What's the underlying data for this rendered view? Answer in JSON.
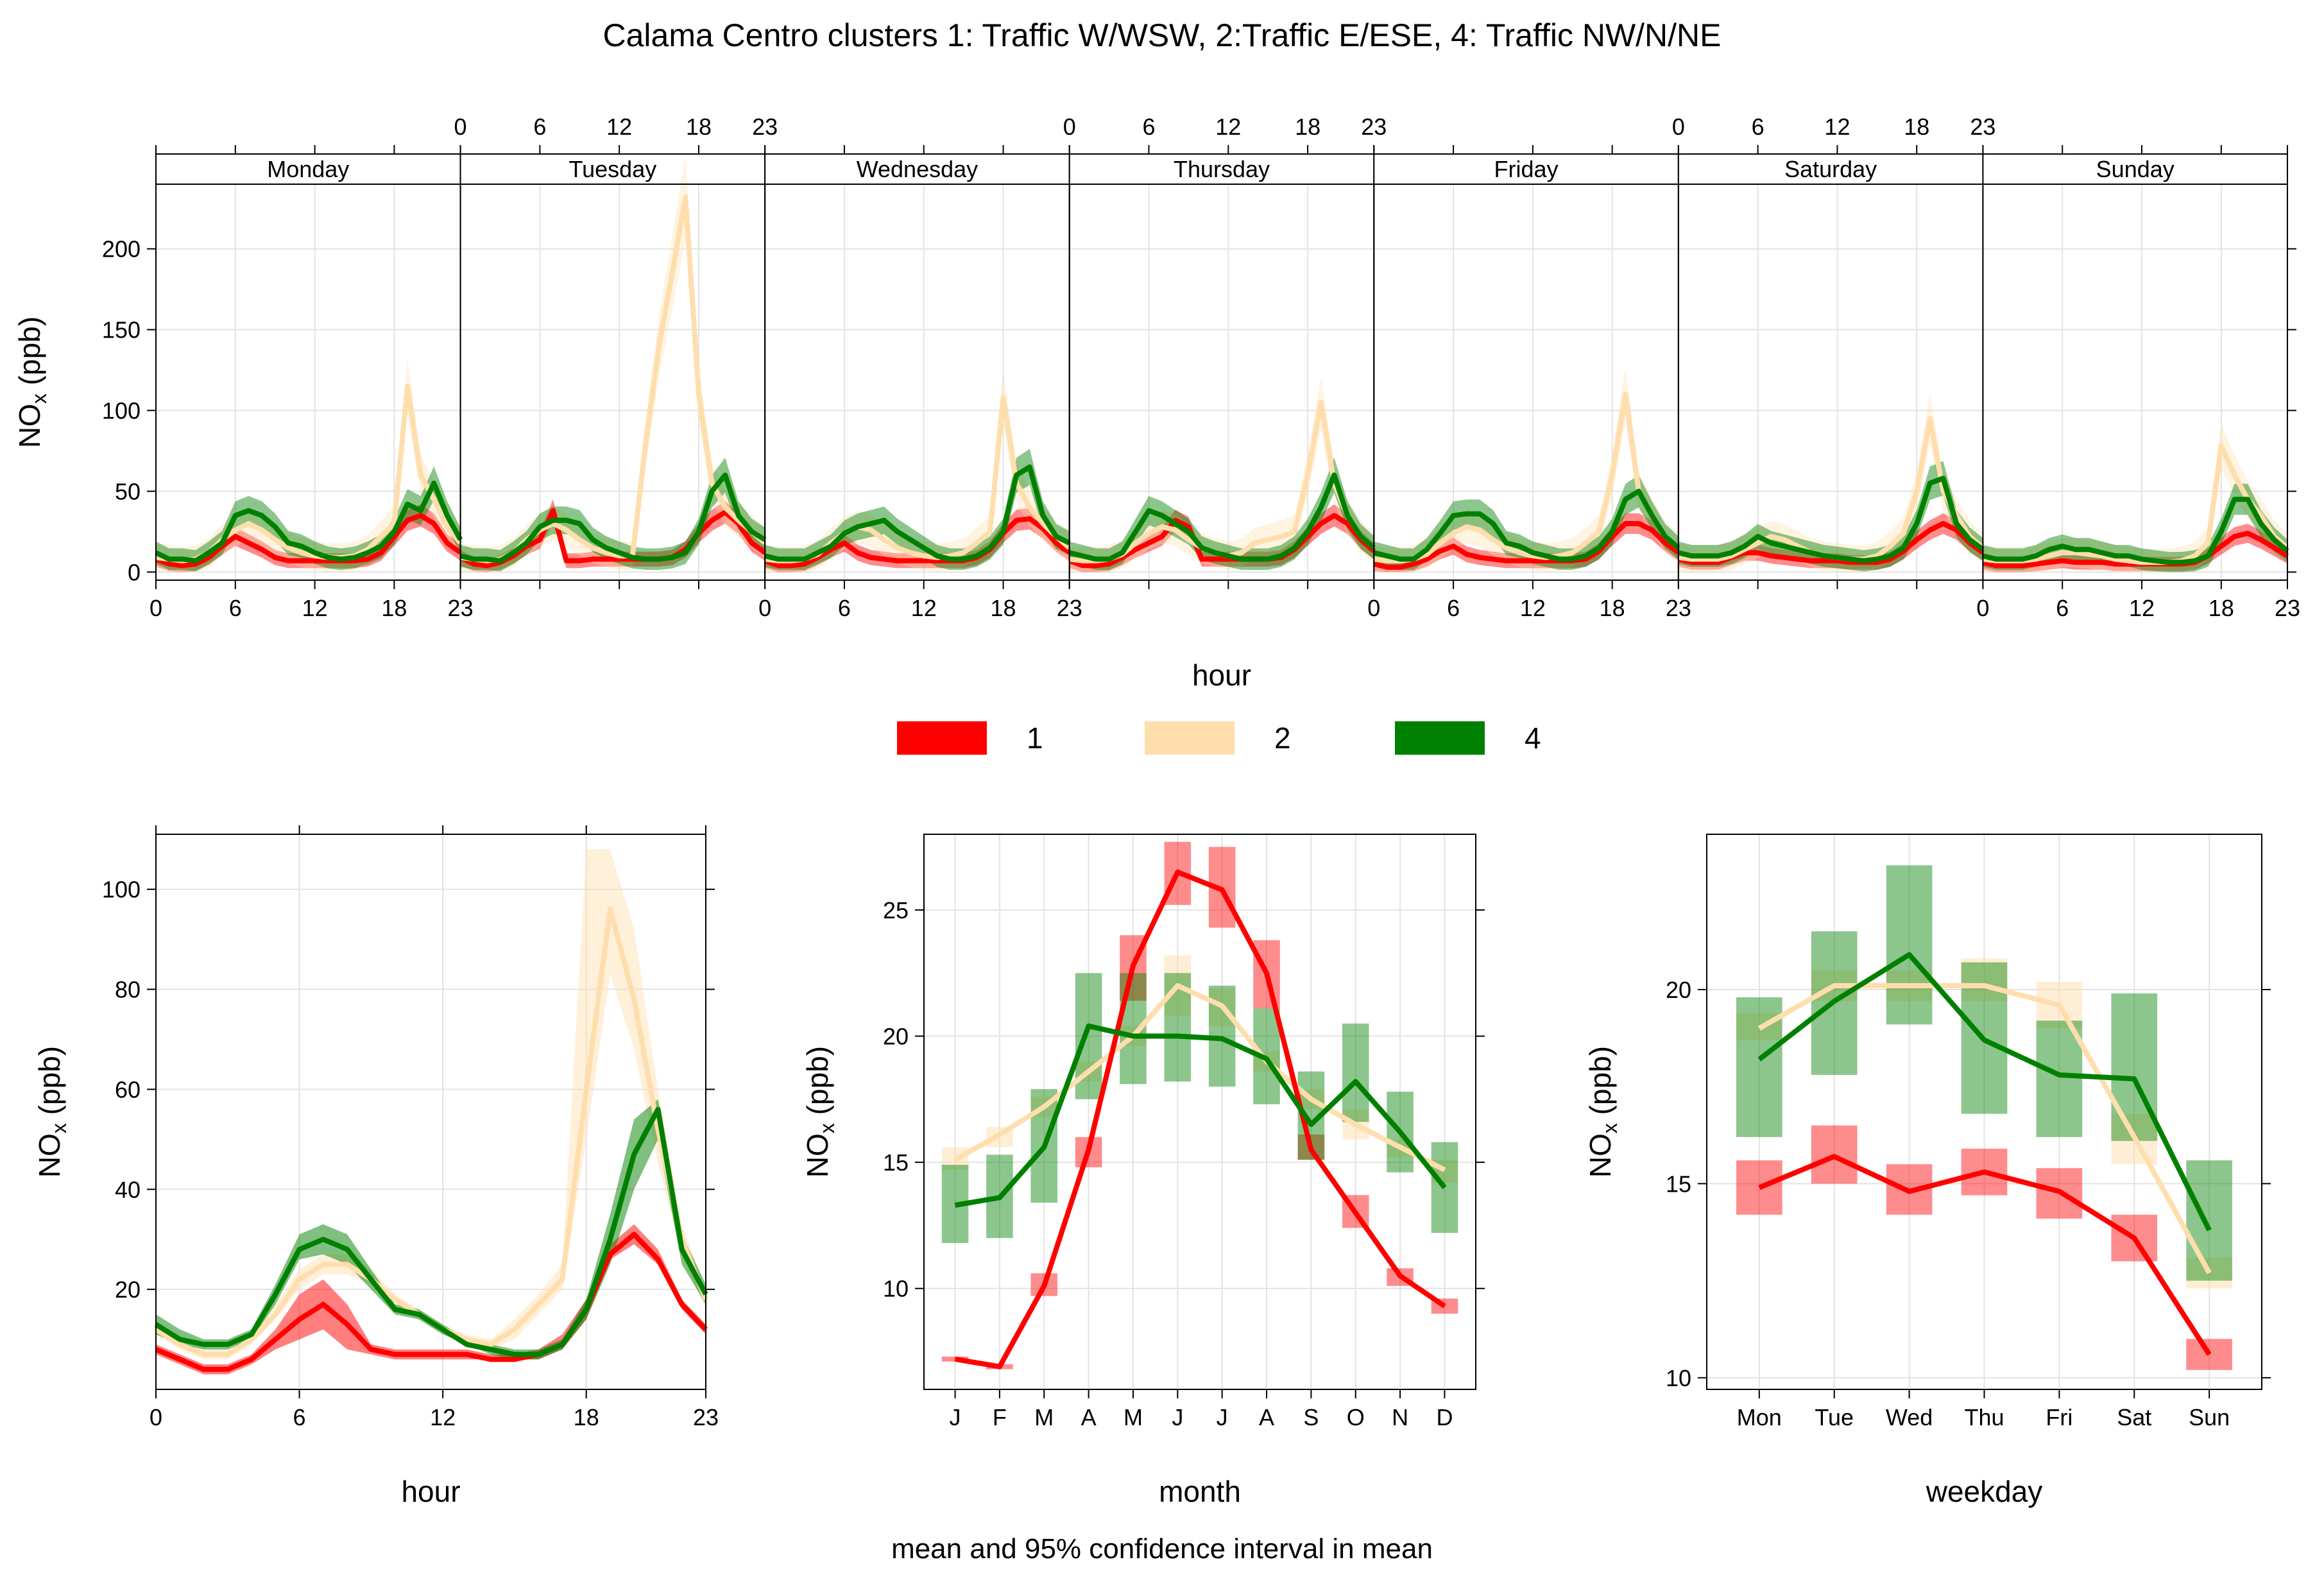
{
  "colors": {
    "1": "#FF0000",
    "2": "#FFDEAD",
    "4": "#008000"
  },
  "chart_data": [
    {
      "id": "weekday-hour",
      "type": "line",
      "title": "Calama Centro clusters 1: Traffic W/WSW, 2:Traffic E/ESE, 4: Traffic NW/N/NE",
      "xlabel": "hour",
      "ylabel": "NOx (ppb)",
      "ylim": [
        -5,
        240
      ],
      "yticks": [
        0,
        50,
        100,
        150,
        200
      ],
      "xticks": [
        0,
        6,
        12,
        18,
        23
      ],
      "panels": [
        "Monday",
        "Tuesday",
        "Wednesday",
        "Thursday",
        "Friday",
        "Saturday",
        "Sunday"
      ],
      "series": [
        {
          "name": "1",
          "values": [
            [
              8,
              5,
              4,
              5,
              9,
              16,
              22,
              18,
              14,
              9,
              7,
              7,
              7,
              7,
              7,
              7,
              8,
              12,
              22,
              32,
              35,
              30,
              18,
              12
            ],
            [
              9,
              5,
              4,
              6,
              10,
              16,
              20,
              38,
              7,
              7,
              8,
              8,
              8,
              8,
              8,
              8,
              9,
              14,
              24,
              32,
              37,
              30,
              18,
              12
            ],
            [
              7,
              4,
              4,
              5,
              9,
              14,
              18,
              12,
              9,
              8,
              7,
              7,
              7,
              7,
              7,
              7,
              9,
              14,
              24,
              32,
              33,
              27,
              18,
              12
            ],
            [
              7,
              4,
              4,
              5,
              9,
              14,
              18,
              22,
              32,
              28,
              8,
              8,
              8,
              8,
              8,
              8,
              9,
              14,
              22,
              30,
              35,
              30,
              20,
              13
            ],
            [
              5,
              3,
              3,
              5,
              8,
              13,
              16,
              11,
              9,
              8,
              7,
              7,
              7,
              7,
              7,
              7,
              8,
              13,
              22,
              30,
              30,
              26,
              18,
              12
            ],
            [
              8,
              6,
              6,
              6,
              9,
              12,
              12,
              10,
              9,
              8,
              7,
              7,
              7,
              6,
              6,
              6,
              8,
              13,
              20,
              26,
              30,
              26,
              18,
              12
            ],
            [
              6,
              4,
              4,
              4,
              5,
              6,
              7,
              6,
              6,
              6,
              5,
              5,
              5,
              5,
              5,
              5,
              6,
              10,
              16,
              22,
              24,
              20,
              15,
              10
            ]
          ],
          "ci": 4
        },
        {
          "name": "2",
          "values": [
            [
              9,
              8,
              7,
              8,
              12,
              20,
              26,
              30,
              26,
              20,
              15,
              12,
              10,
              9,
              9,
              10,
              14,
              22,
              30,
              115,
              60,
              45,
              28,
              18
            ],
            [
              9,
              8,
              7,
              8,
              12,
              20,
              26,
              30,
              26,
              20,
              15,
              12,
              10,
              10,
              80,
              140,
              185,
              232,
              110,
              55,
              40,
              32,
              25,
              18
            ],
            [
              8,
              7,
              7,
              8,
              11,
              18,
              24,
              28,
              26,
              20,
              15,
              12,
              10,
              9,
              10,
              12,
              18,
              25,
              108,
              55,
              40,
              30,
              22,
              15
            ],
            [
              8,
              7,
              7,
              8,
              11,
              18,
              24,
              28,
              26,
              20,
              15,
              12,
              10,
              12,
              18,
              20,
              22,
              25,
              60,
              105,
              55,
              35,
              22,
              15
            ],
            [
              8,
              7,
              7,
              8,
              11,
              18,
              24,
              28,
              26,
              20,
              15,
              12,
              10,
              9,
              10,
              12,
              18,
              25,
              60,
              110,
              50,
              35,
              22,
              15
            ],
            [
              9,
              8,
              8,
              8,
              10,
              14,
              18,
              22,
              20,
              16,
              12,
              10,
              9,
              8,
              8,
              10,
              16,
              24,
              50,
              95,
              50,
              35,
              22,
              15
            ],
            [
              8,
              7,
              7,
              7,
              8,
              10,
              12,
              12,
              11,
              10,
              8,
              7,
              6,
              6,
              6,
              7,
              10,
              18,
              78,
              60,
              45,
              35,
              22,
              15
            ]
          ],
          "ci": 8
        },
        {
          "name": "4",
          "values": [
            [
              12,
              8,
              8,
              7,
              12,
              18,
              35,
              38,
              35,
              28,
              18,
              16,
              12,
              9,
              8,
              9,
              12,
              16,
              25,
              42,
              38,
              55,
              35,
              20
            ],
            [
              10,
              8,
              8,
              7,
              12,
              18,
              28,
              32,
              32,
              30,
              20,
              15,
              12,
              9,
              8,
              8,
              9,
              12,
              25,
              50,
              60,
              35,
              25,
              20
            ],
            [
              10,
              8,
              8,
              8,
              12,
              16,
              24,
              28,
              30,
              32,
              25,
              20,
              15,
              10,
              8,
              8,
              10,
              15,
              25,
              60,
              65,
              35,
              22,
              18
            ],
            [
              12,
              10,
              8,
              8,
              12,
              25,
              38,
              35,
              30,
              25,
              15,
              12,
              10,
              8,
              8,
              8,
              10,
              15,
              25,
              40,
              60,
              35,
              22,
              15
            ],
            [
              12,
              10,
              8,
              8,
              14,
              24,
              35,
              36,
              36,
              30,
              18,
              16,
              12,
              10,
              8,
              8,
              10,
              15,
              25,
              45,
              50,
              35,
              22,
              15
            ],
            [
              12,
              10,
              10,
              10,
              12,
              16,
              22,
              18,
              16,
              14,
              12,
              10,
              9,
              8,
              7,
              8,
              10,
              15,
              30,
              55,
              58,
              30,
              20,
              14
            ],
            [
              10,
              8,
              8,
              8,
              10,
              14,
              16,
              14,
              14,
              12,
              10,
              10,
              8,
              7,
              6,
              6,
              7,
              10,
              25,
              45,
              45,
              30,
              20,
              13
            ]
          ],
          "ci": 6
        }
      ]
    },
    {
      "id": "hour",
      "type": "line",
      "xlabel": "hour",
      "ylabel": "NOx (ppb)",
      "ylim": [
        0,
        111
      ],
      "yticks": [
        20,
        40,
        60,
        80,
        100
      ],
      "xticks": [
        0,
        6,
        12,
        18,
        23
      ],
      "series": [
        {
          "name": "1",
          "values": [
            8,
            6,
            4,
            4,
            6,
            10,
            14,
            17,
            13,
            8,
            7,
            7,
            7,
            7,
            6,
            6,
            7,
            9,
            16,
            27,
            31,
            26,
            17,
            12
          ],
          "lower": [
            7,
            5,
            3,
            3,
            5,
            8,
            10,
            12,
            8,
            7,
            6,
            6,
            6,
            6,
            6,
            6,
            6,
            8,
            14,
            26,
            29,
            25,
            16,
            11
          ],
          "upper": [
            9,
            7,
            5,
            5,
            7,
            12,
            19,
            22,
            17,
            9,
            8,
            8,
            8,
            8,
            7,
            7,
            8,
            11,
            18,
            29,
            33,
            28,
            18,
            13
          ]
        },
        {
          "name": "2",
          "values": [
            12,
            9,
            7,
            7,
            10,
            15,
            22,
            25,
            25,
            22,
            18,
            15,
            12,
            10,
            9,
            12,
            17,
            22,
            60,
            96,
            78,
            52,
            30,
            18
          ],
          "lower": [
            11,
            8,
            6,
            6,
            9,
            14,
            20,
            23,
            23,
            21,
            17,
            14,
            11,
            9,
            8,
            10,
            15,
            20,
            50,
            83,
            68,
            45,
            27,
            16
          ],
          "upper": [
            13,
            10,
            8,
            8,
            11,
            17,
            24,
            27,
            27,
            24,
            19,
            16,
            13,
            11,
            10,
            14,
            19,
            25,
            108,
            108,
            92,
            60,
            33,
            20
          ]
        },
        {
          "name": "4",
          "values": [
            13,
            10,
            9,
            9,
            11,
            19,
            28,
            30,
            28,
            22,
            16,
            15,
            12,
            9,
            8,
            7,
            7,
            9,
            16,
            30,
            47,
            56,
            28,
            19
          ],
          "lower": [
            11,
            9,
            8,
            8,
            10,
            17,
            26,
            27,
            25,
            20,
            15,
            14,
            11,
            9,
            7,
            6,
            6,
            8,
            14,
            25,
            40,
            50,
            25,
            17
          ],
          "upper": [
            15,
            12,
            10,
            10,
            12,
            21,
            31,
            33,
            31,
            24,
            17,
            16,
            13,
            10,
            9,
            8,
            8,
            10,
            18,
            35,
            54,
            58,
            31,
            21
          ]
        }
      ]
    },
    {
      "id": "month",
      "type": "line",
      "xlabel": "month",
      "ylabel": "NOx (ppb)",
      "ylim": [
        6,
        28
      ],
      "yticks": [
        10,
        15,
        20,
        25
      ],
      "categories": [
        "J",
        "F",
        "M",
        "A",
        "M",
        "J",
        "J",
        "A",
        "S",
        "O",
        "N",
        "D"
      ],
      "series": [
        {
          "name": "1",
          "values": [
            7.2,
            6.9,
            10.1,
            15.5,
            22.8,
            26.5,
            25.8,
            22.5,
            15.5,
            13.0,
            10.5,
            9.3
          ],
          "lower": [
            7.1,
            6.8,
            9.7,
            14.8,
            21.4,
            25.2,
            24.3,
            21.1,
            15.1,
            12.4,
            10.1,
            9.0
          ],
          "upper": [
            7.3,
            7.0,
            10.6,
            16.0,
            24.0,
            27.7,
            27.5,
            23.8,
            16.1,
            13.7,
            10.8,
            9.6
          ]
        },
        {
          "name": "2",
          "values": [
            15.1,
            16.1,
            17.2,
            18.6,
            20.0,
            22.0,
            21.2,
            19.0,
            17.5,
            16.5,
            15.6,
            14.7
          ],
          "lower": [
            14.7,
            15.6,
            16.8,
            18.2,
            19.6,
            20.8,
            20.4,
            18.6,
            17.1,
            15.9,
            15.2,
            14.2
          ],
          "upper": [
            15.6,
            16.4,
            17.6,
            19.0,
            20.4,
            23.2,
            21.9,
            19.4,
            17.9,
            17.1,
            15.9,
            15.1
          ]
        },
        {
          "name": "4",
          "values": [
            13.3,
            13.6,
            15.6,
            20.4,
            20.0,
            20.0,
            19.9,
            19.1,
            16.5,
            18.2,
            16.2,
            14.0
          ],
          "lower": [
            11.8,
            12.0,
            13.4,
            17.5,
            18.1,
            18.2,
            18.0,
            17.3,
            15.1,
            16.6,
            14.6,
            12.2
          ],
          "upper": [
            14.9,
            15.3,
            17.9,
            22.5,
            22.5,
            22.5,
            22.0,
            21.1,
            18.6,
            20.5,
            17.8,
            15.8
          ]
        }
      ]
    },
    {
      "id": "weekday",
      "type": "line",
      "xlabel": "weekday",
      "ylabel": "NOx (ppb)",
      "ylim": [
        9.7,
        24
      ],
      "yticks": [
        10,
        15,
        20
      ],
      "categories": [
        "Mon",
        "Tue",
        "Wed",
        "Thu",
        "Fri",
        "Sat",
        "Sun"
      ],
      "series": [
        {
          "name": "1",
          "values": [
            14.9,
            15.7,
            14.8,
            15.3,
            14.8,
            13.6,
            10.6
          ],
          "lower": [
            14.2,
            15.0,
            14.2,
            14.7,
            14.1,
            13.0,
            10.2
          ],
          "upper": [
            15.6,
            16.5,
            15.5,
            15.9,
            15.4,
            14.2,
            11.0
          ]
        },
        {
          "name": "2",
          "values": [
            19.0,
            20.1,
            20.1,
            20.1,
            19.6,
            16.2,
            12.7
          ],
          "lower": [
            18.7,
            19.7,
            19.7,
            19.7,
            19.0,
            15.5,
            12.3
          ],
          "upper": [
            19.4,
            20.5,
            20.5,
            20.8,
            20.2,
            16.8,
            13.1
          ]
        },
        {
          "name": "4",
          "values": [
            18.2,
            19.7,
            20.9,
            18.7,
            17.8,
            17.7,
            13.8
          ],
          "lower": [
            16.2,
            17.8,
            19.1,
            16.8,
            16.2,
            16.1,
            12.5
          ],
          "upper": [
            19.8,
            21.5,
            23.2,
            20.7,
            19.2,
            19.9,
            15.6
          ]
        }
      ]
    }
  ],
  "legend": [
    {
      "key": "1",
      "label": "1"
    },
    {
      "key": "2",
      "label": "2"
    },
    {
      "key": "4",
      "label": "4"
    }
  ],
  "footer": "mean and 95% confidence interval in mean"
}
